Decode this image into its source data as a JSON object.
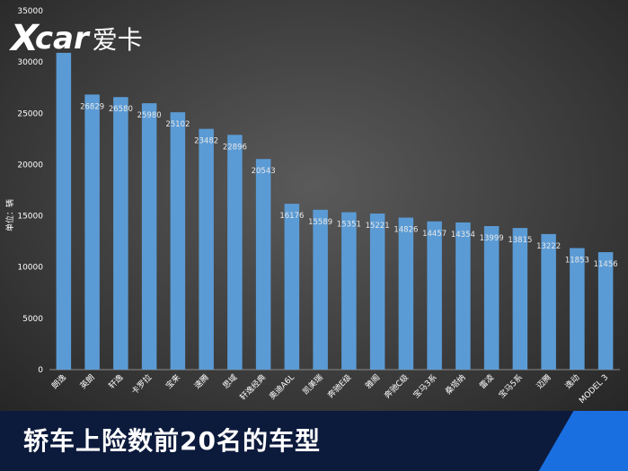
{
  "logo": {
    "mark": "X",
    "car": "car",
    "cn": "爱卡"
  },
  "banner": {
    "title": "轿车上险数前20名的车型"
  },
  "colors": {
    "bar": "#5b9bd5",
    "banner_bg": "#0c1a3c",
    "banner_accent": "#1a6fe0"
  },
  "chart_data": {
    "type": "bar",
    "title": "",
    "xlabel": "",
    "ylabel": "单位：辆",
    "ylim": [
      0,
      35000
    ],
    "yticks": [
      0,
      5000,
      10000,
      15000,
      20000,
      25000,
      30000,
      35000
    ],
    "grid": false,
    "categories": [
      "朗逸",
      "英朗",
      "轩逸",
      "卡罗拉",
      "宝来",
      "速腾",
      "思域",
      "轩逸经典",
      "奥迪A6L",
      "凯美瑞",
      "奔驰E级",
      "雅阁",
      "奔驰C级",
      "宝马3系",
      "桑塔纳",
      "雷凌",
      "宝马5系",
      "迈腾",
      "逸动",
      "MODEL 3"
    ],
    "values": [
      30900,
      26829,
      26580,
      25980,
      25102,
      23482,
      22896,
      20543,
      16176,
      15589,
      15351,
      15221,
      14826,
      14457,
      14354,
      13999,
      13815,
      13222,
      11853,
      11456
    ],
    "data_labels": [
      "",
      "26829",
      "26580",
      "25980",
      "25102",
      "23482",
      "22896",
      "20543",
      "16176",
      "15589",
      "15351",
      "15221",
      "14826",
      "14457",
      "14354",
      "13999",
      "13815",
      "13222",
      "11853",
      "11456"
    ]
  }
}
